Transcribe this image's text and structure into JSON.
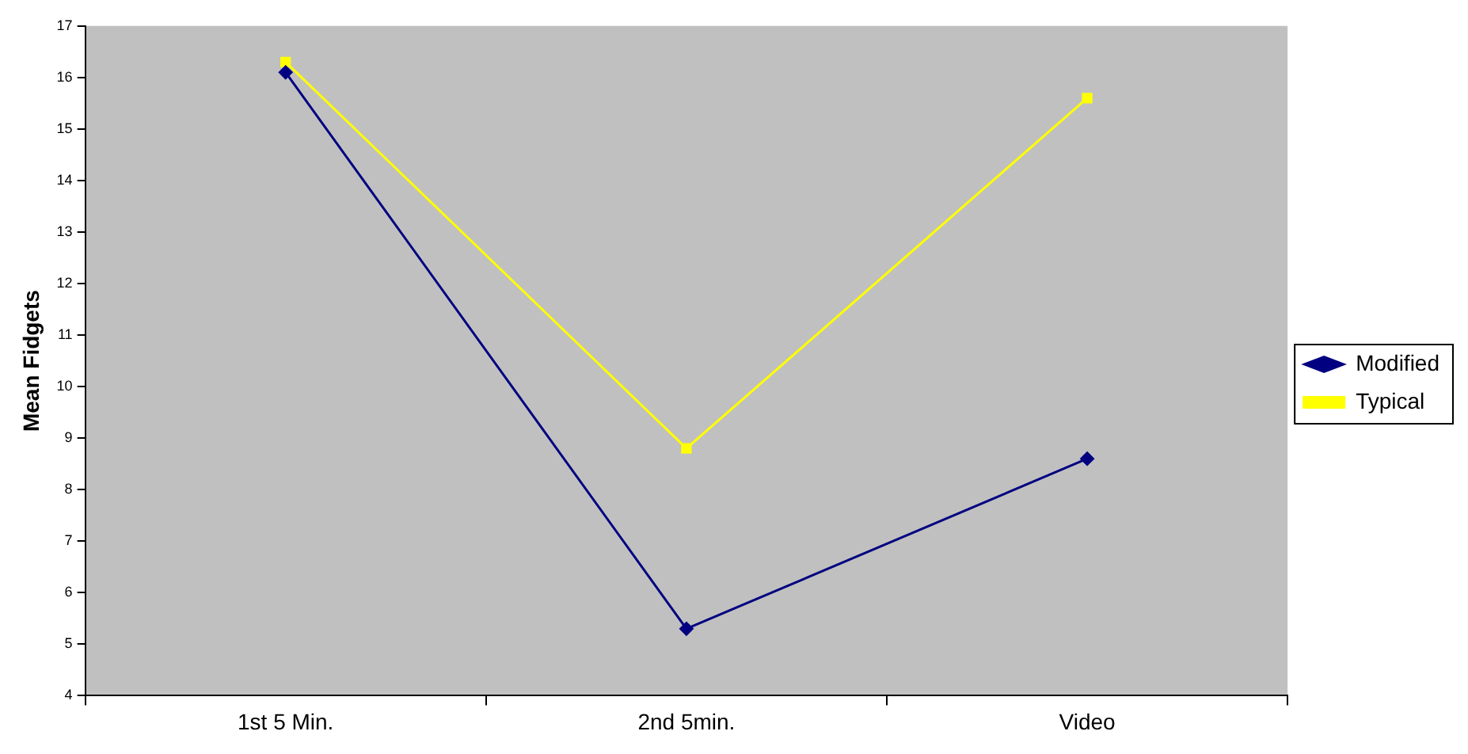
{
  "chart_data": {
    "type": "line",
    "ylabel": "Mean Fidgets",
    "categories": [
      "1st 5 Min.",
      "2nd 5min.",
      "Video"
    ],
    "series": [
      {
        "name": "Modified",
        "color": "#000080",
        "values": [
          16.1,
          5.3,
          8.6
        ],
        "marker": "diamond"
      },
      {
        "name": "Typical",
        "color": "#ffff00",
        "values": [
          16.3,
          8.8,
          15.6
        ],
        "marker": "square"
      }
    ],
    "ylim": [
      4,
      17
    ],
    "yticks": [
      4,
      5,
      6,
      7,
      8,
      9,
      10,
      11,
      12,
      13,
      14,
      15,
      16,
      17
    ],
    "grid": false,
    "legend": "right",
    "line_style": "solid"
  }
}
